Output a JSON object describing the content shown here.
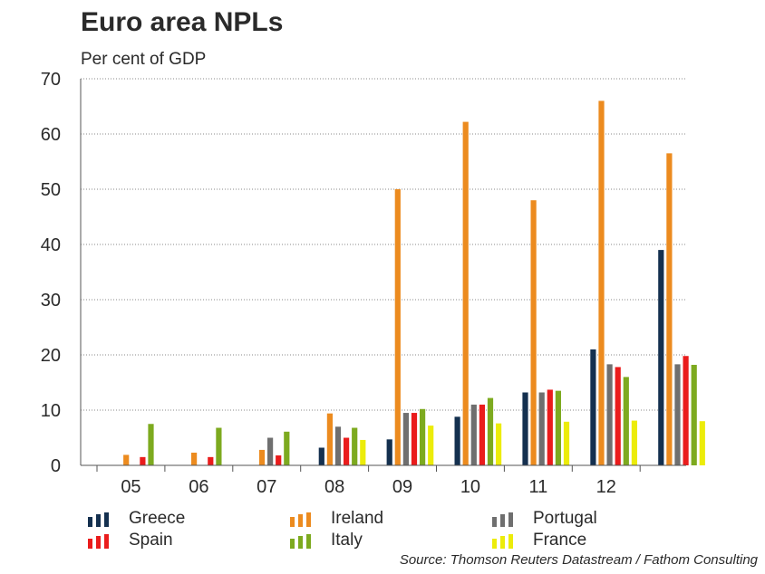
{
  "header": {
    "title": "Euro area NPLs",
    "subtitle": "Per cent of GDP"
  },
  "source": "Source: Thomson Reuters Datastream / Fathom Consulting",
  "chart_data": {
    "type": "bar",
    "title": "Euro area NPLs",
    "ylabel": "Per cent of GDP",
    "xlabel": "",
    "ylim": [
      0,
      70
    ],
    "yticks": [
      0,
      10,
      20,
      30,
      40,
      50,
      60,
      70
    ],
    "grid": true,
    "legend_position": "bottom",
    "categories": [
      "05",
      "06",
      "07",
      "08",
      "09",
      "10",
      "11",
      "12",
      ""
    ],
    "series": [
      {
        "name": "Greece",
        "color": "#14304f",
        "values": [
          0,
          0,
          0,
          3.2,
          4.7,
          8.8,
          13.2,
          21.0,
          39.0
        ]
      },
      {
        "name": "Ireland",
        "color": "#ec8b1f",
        "values": [
          1.9,
          2.3,
          2.8,
          9.4,
          50.0,
          62.2,
          48.0,
          66.0,
          56.5
        ]
      },
      {
        "name": "Portugal",
        "color": "#6f6f6f",
        "values": [
          0,
          0,
          5.0,
          7.0,
          9.5,
          11.0,
          13.2,
          18.3,
          18.3
        ]
      },
      {
        "name": "Spain",
        "color": "#ea1c1c",
        "values": [
          1.5,
          1.5,
          1.8,
          5.0,
          9.5,
          11.0,
          13.7,
          17.8,
          19.8
        ]
      },
      {
        "name": "Italy",
        "color": "#7daa1f",
        "values": [
          7.5,
          6.8,
          6.1,
          6.8,
          10.2,
          12.2,
          13.5,
          16.0,
          18.2
        ]
      },
      {
        "name": "France",
        "color": "#ecec0a",
        "values": [
          0,
          0,
          0,
          4.6,
          7.2,
          7.6,
          7.9,
          8.1,
          8.0
        ]
      }
    ]
  }
}
